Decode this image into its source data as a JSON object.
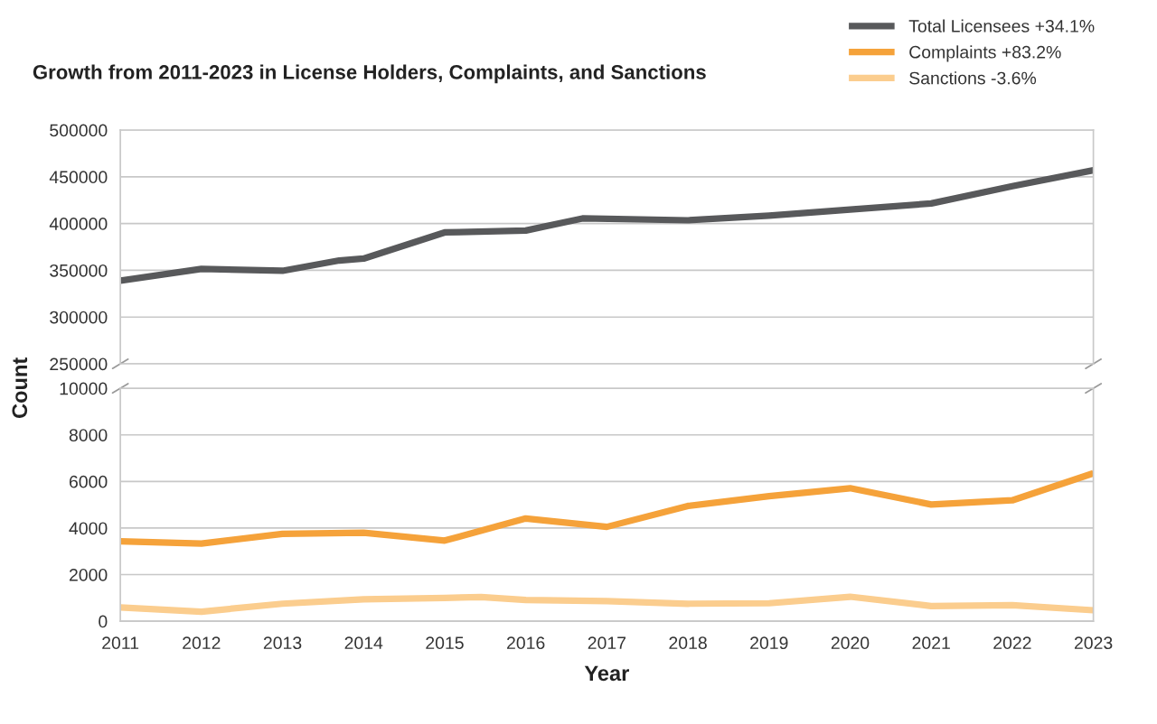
{
  "chart_data": [
    {
      "type": "line",
      "title": "Growth from 2011-2023 in License Holders, Complaints, and Sanctions",
      "xlim": [
        2011,
        2023
      ],
      "ylim": [
        250000,
        500000
      ],
      "yticks": [
        250000,
        300000,
        350000,
        400000,
        450000,
        500000
      ],
      "grid": "y",
      "legend": "top right",
      "tick_labels": "y",
      "series": [
        {
          "name": "Total Licensees +34.1%",
          "color": "#58595b",
          "x": [
            2011,
            2012,
            2013,
            2013.7,
            2014,
            2015,
            2016,
            2016.7,
            2018,
            2019,
            2020,
            2021,
            2022,
            2023
          ],
          "values": [
            339000,
            351500,
            349500,
            360500,
            362500,
            390500,
            392500,
            405500,
            403500,
            408500,
            415000,
            421500,
            440000,
            457000
          ]
        }
      ]
    },
    {
      "type": "line",
      "xlabel": "Year",
      "ylabel": "Count",
      "xlim": [
        2011,
        2023
      ],
      "xticks": [
        2011,
        2012,
        2013,
        2014,
        2015,
        2016,
        2017,
        2018,
        2019,
        2020,
        2021,
        2022,
        2023
      ],
      "ylim": [
        0,
        10000
      ],
      "yticks": [
        0,
        2000,
        4000,
        6000,
        8000,
        10000
      ],
      "grid": "y",
      "legend": "top right",
      "series": [
        {
          "name": "Complaints +83.2%",
          "color": "#f5a23a",
          "x": [
            2011,
            2012,
            2013,
            2014,
            2015,
            2016,
            2017,
            2018,
            2019,
            2020,
            2021,
            2022,
            2023
          ],
          "values": [
            3430,
            3330,
            3750,
            3800,
            3460,
            4410,
            4050,
            4950,
            5370,
            5710,
            5010,
            5190,
            6350
          ]
        },
        {
          "name": "Sanctions -3.6%",
          "color": "#fbcd8e",
          "x": [
            2011,
            2012,
            2013,
            2014,
            2015,
            2015.45,
            2016,
            2017,
            2018,
            2019,
            2020,
            2021,
            2022,
            2023
          ],
          "values": [
            590,
            410,
            750,
            940,
            1000,
            1040,
            910,
            860,
            750,
            770,
            1050,
            650,
            690,
            470
          ]
        }
      ]
    }
  ]
}
